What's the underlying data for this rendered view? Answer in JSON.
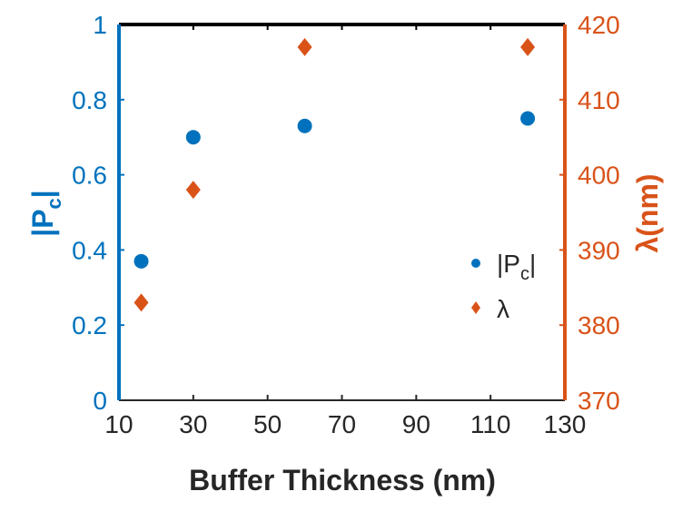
{
  "chart_data": {
    "type": "scatter",
    "title": "",
    "xlabel": "Buffer Thickness (nm)",
    "ylabel_left": {
      "main": "|P",
      "sub": "c",
      "end": "|"
    },
    "ylabel_right": "λ(nm)",
    "xlim": [
      10,
      130
    ],
    "ylim_left": [
      0,
      1
    ],
    "ylim_right": [
      370,
      420
    ],
    "x_ticks": [
      "10",
      "30",
      "50",
      "70",
      "90",
      "110",
      "130"
    ],
    "y_left_ticks": [
      "0",
      "0.2",
      "0.4",
      "0.6",
      "0.8",
      "1"
    ],
    "y_right_ticks": [
      "370",
      "380",
      "390",
      "400",
      "410",
      "420"
    ],
    "grid": false,
    "legend_position": "center-right",
    "series": [
      {
        "name": "|Pc|",
        "legend_label": {
          "main": "|P",
          "sub": "c",
          "end": "|"
        },
        "axis": "left",
        "marker": "circle",
        "color": "#0072BD",
        "x": [
          16,
          30,
          60,
          120
        ],
        "y": [
          0.37,
          0.7,
          0.73,
          0.75
        ]
      },
      {
        "name": "λ",
        "legend_label": {
          "main": "λ",
          "sub": "",
          "end": ""
        },
        "axis": "right",
        "marker": "diamond",
        "color": "#D95319",
        "x": [
          16,
          30,
          60,
          120
        ],
        "y": [
          383,
          398,
          417,
          417
        ]
      }
    ]
  },
  "colors": {
    "left_axis": "#0072BD",
    "right_axis": "#D95319",
    "frame": "#000000",
    "text": "#262626"
  }
}
